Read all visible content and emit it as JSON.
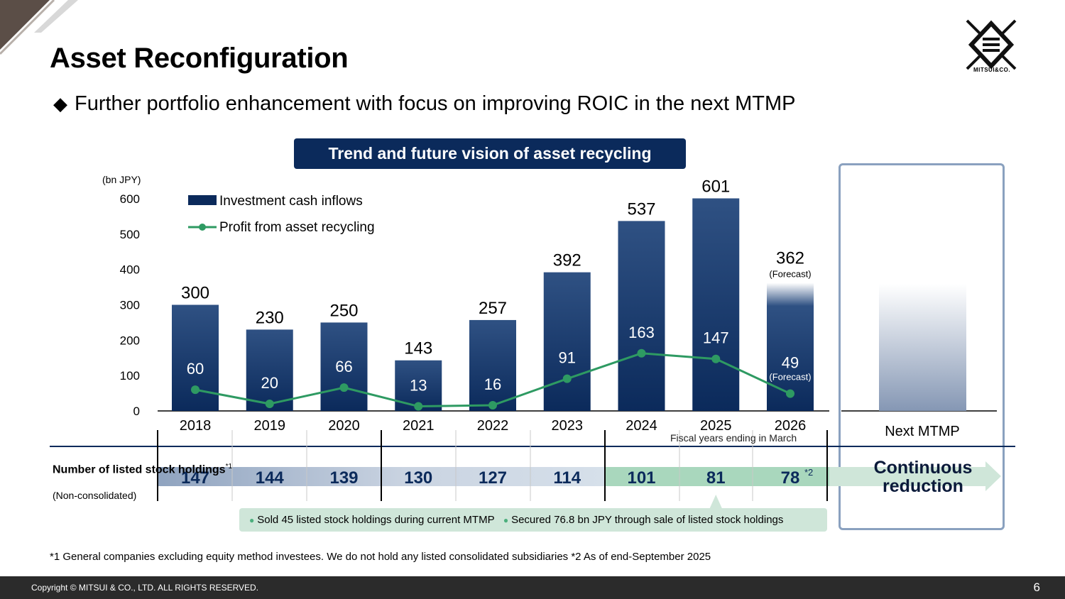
{
  "header": {
    "title": "Asset Reconfiguration",
    "subtitle": "Further portfolio enhancement with focus on improving ROIC in the next MTMP",
    "logo_text": "MITSUI&CO."
  },
  "chart_title": "Trend and future vision of asset recycling",
  "chart_data": {
    "type": "bar",
    "unit_label": "(bn JPY)",
    "ylim": [
      0,
      600
    ],
    "yticks": [
      0,
      100,
      200,
      300,
      400,
      500,
      600
    ],
    "categories": [
      "2018",
      "2019",
      "2020",
      "2021",
      "2022",
      "2023",
      "2024",
      "2025",
      "2026",
      "Next MTMP"
    ],
    "series": [
      {
        "name": "Investment cash inflows",
        "type": "bar",
        "color": "#0b2a5b",
        "values": [
          300,
          230,
          250,
          143,
          257,
          392,
          537,
          601,
          362,
          null
        ]
      },
      {
        "name": "Profit from asset recycling",
        "type": "line",
        "color": "#2e9a62",
        "values": [
          60,
          20,
          66,
          13,
          16,
          91,
          163,
          147,
          49,
          null
        ]
      }
    ],
    "forecast_label": "(Forecast)",
    "forecast_category": "2026",
    "x_note": "Fiscal years ending in March"
  },
  "holdings": {
    "label": "Number of listed stock holdings",
    "label_sup": "*1",
    "sub_label": "(Non-consolidated)",
    "values": [
      "147",
      "144",
      "139",
      "130",
      "127",
      "114",
      "101",
      "81",
      "78"
    ],
    "last_sup": "*2",
    "next_text": "Continuous reduction"
  },
  "notes": [
    "Sold 45 listed stock holdings during current MTMP",
    "Secured 76.8 bn JPY through sale of listed stock holdings"
  ],
  "footnote": "*1 General companies excluding equity method investees. We do not hold any listed consolidated subsidiaries    *2 As of end-September 2025",
  "footer": {
    "copyright": "Copyright © MITSUI & CO., LTD. ALL RIGHTS RESERVED.",
    "page_number": "6"
  },
  "colors": {
    "bar": "#0b2a5b",
    "line": "#2e9a62",
    "accent": "#0b2a5b"
  }
}
